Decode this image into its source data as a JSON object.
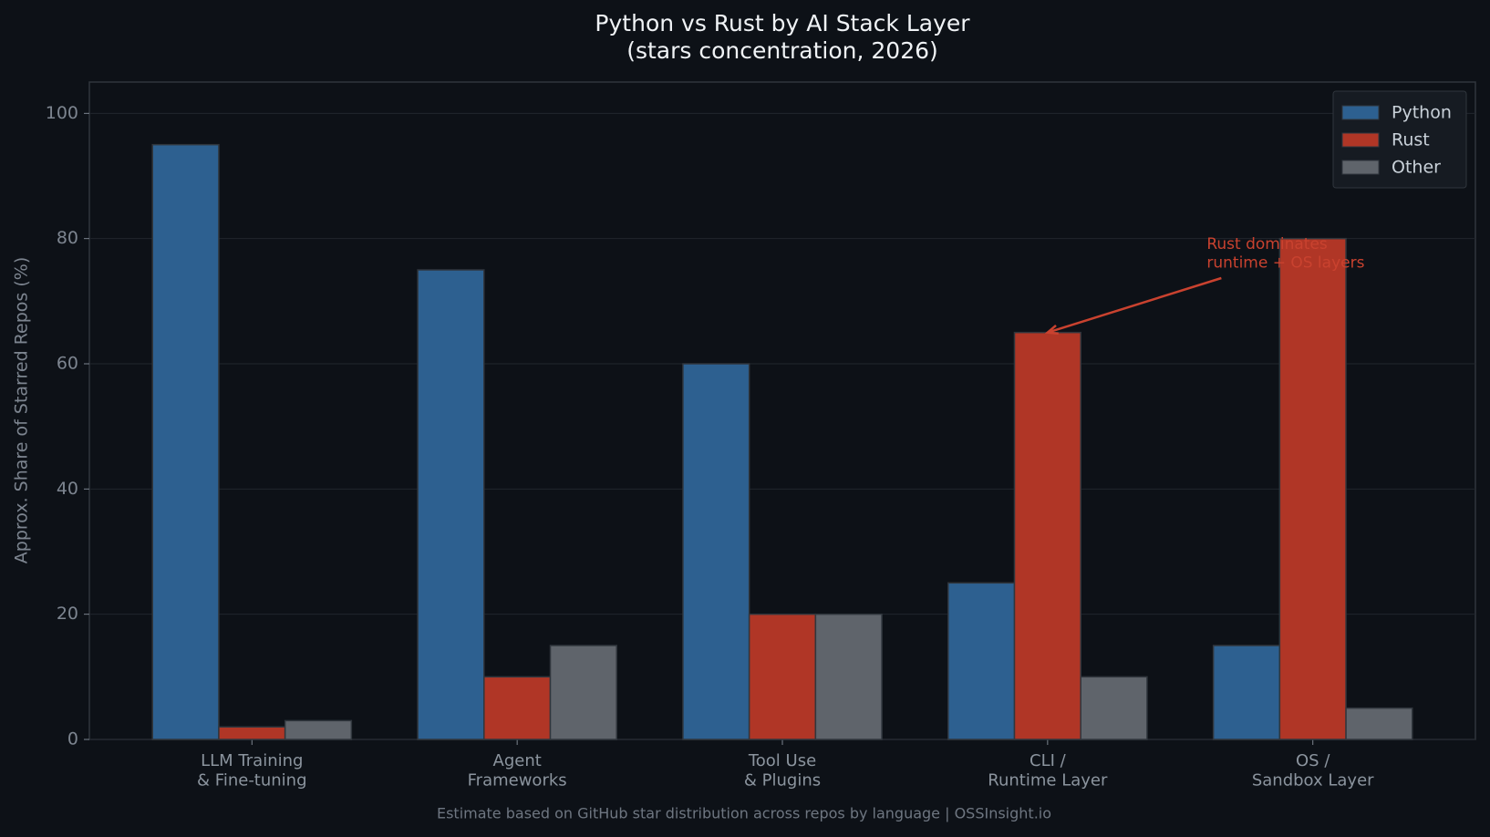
{
  "chart_data": {
    "type": "bar",
    "title": "Python vs Rust by AI Stack Layer",
    "subtitle": "(stars concentration, 2026)",
    "ylabel": "Approx. Share of Starred Repos (%)",
    "footnote": "Estimate based on GitHub star distribution across repos by language | OSSInsight.io",
    "annotation": "Rust dominates\nruntime + OS layers",
    "categories": [
      "LLM Training\n& Fine-tuning",
      "Agent\nFrameworks",
      "Tool Use\n& Plugins",
      "CLI /\nRuntime Layer",
      "OS /\nSandbox Layer"
    ],
    "series": [
      {
        "name": "Python",
        "color": "#2d6090",
        "values": [
          95,
          75,
          60,
          25,
          15
        ]
      },
      {
        "name": "Rust",
        "color": "#b03626",
        "values": [
          2,
          10,
          20,
          65,
          80
        ]
      },
      {
        "name": "Other",
        "color": "#5f646b",
        "values": [
          3,
          15,
          20,
          10,
          5
        ]
      }
    ],
    "ylim": [
      0,
      105
    ],
    "yticks": [
      0,
      20,
      40,
      60,
      80,
      100
    ],
    "grid": true,
    "legend": "upper right"
  }
}
